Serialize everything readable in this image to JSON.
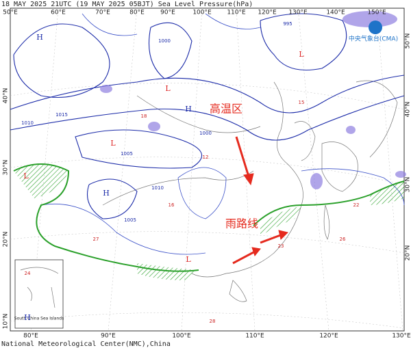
{
  "header": {
    "title": "18 MAY 2025 21UTC (19 MAY 2025 05BJT) Sea Level Pressure(hPa)"
  },
  "footer": {
    "credit": "National Meteorological Center(NMC),China"
  },
  "logo": "中央气象台(CMA)",
  "annotations": [
    "高温区",
    "雨路线"
  ],
  "inset": {
    "label": "South China Sea Islands"
  },
  "axes": {
    "top": [
      "50°E",
      "60°E",
      "70°E",
      "80°E",
      "90°E",
      "100°E",
      "110°E",
      "120°E",
      "130°E",
      "140°E",
      "150°E"
    ],
    "bottom": [
      "80°E",
      "90°E",
      "100°E",
      "110°E",
      "120°E",
      "130°E"
    ],
    "left": [
      "40°N",
      "30°N",
      "20°N",
      "10°N"
    ],
    "right": [
      "50°N",
      "40°N",
      "30°N",
      "20°N"
    ]
  },
  "pressure_centers": [
    "H",
    "L",
    "H",
    "L",
    "L",
    "H",
    "L",
    "L",
    "H"
  ],
  "isobar_labels": [
    "1010",
    "1015",
    "1005",
    "995",
    "1000",
    "1010",
    "1000",
    "1005"
  ],
  "station_values": [
    "24",
    "23",
    "26",
    "18",
    "15",
    "12",
    "27",
    "28",
    "22",
    "16"
  ]
}
